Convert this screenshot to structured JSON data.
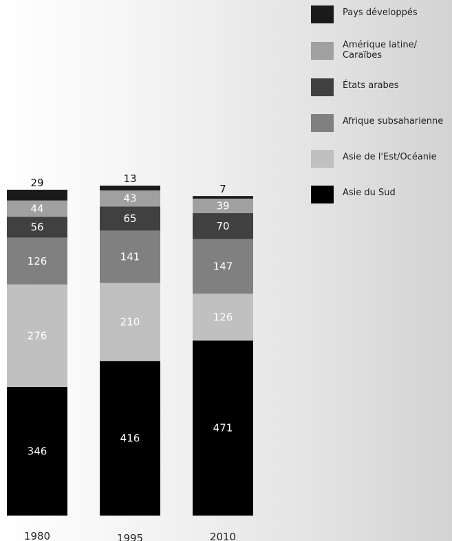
{
  "chart_data": {
    "type": "bar",
    "stacked": true,
    "categories": [
      "1980",
      "1995",
      "2010"
    ],
    "series": [
      {
        "name": "Asie du Sud",
        "values": [
          346,
          416,
          471
        ],
        "color": "#000000",
        "label_color": "#ffffff"
      },
      {
        "name": "Asie de l'Est/Océanie",
        "values": [
          276,
          210,
          126
        ],
        "color": "#c0c0c0",
        "label_color": "#ffffff"
      },
      {
        "name": "Afrique subsaharienne",
        "values": [
          126,
          141,
          147
        ],
        "color": "#808080",
        "label_color": "#ffffff"
      },
      {
        "name": "États arabes",
        "values": [
          56,
          65,
          70
        ],
        "color": "#404040",
        "label_color": "#ffffff"
      },
      {
        "name": "Amérique latine/\nCaraïbes",
        "values": [
          44,
          43,
          39
        ],
        "color": "#a0a0a0",
        "label_color": "#ffffff"
      },
      {
        "name": "Pays développés",
        "values": [
          29,
          13,
          7
        ],
        "color": "#1a1a1a",
        "label_color": "#111111",
        "label_above": true
      }
    ],
    "legend_position": "top-right",
    "grid": false
  }
}
